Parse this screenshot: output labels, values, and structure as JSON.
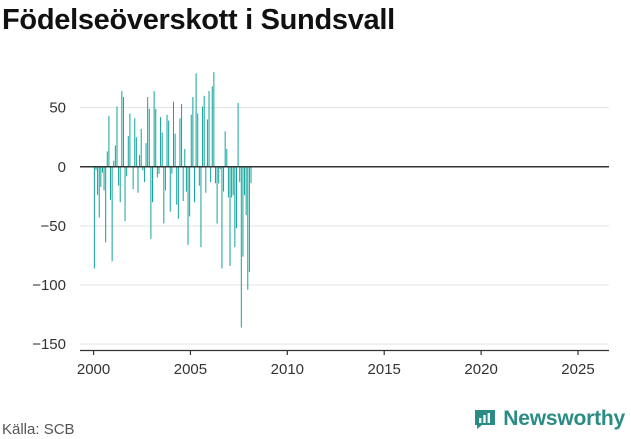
{
  "title": "Födelseöverskott i Sundsvall",
  "source": "Källa: SCB",
  "brand": {
    "name": "Newsworthy",
    "icon": "newsworthy-logo-icon"
  },
  "colors": {
    "bar": "#12a39a",
    "grid": "#e3e3e3",
    "zero": "#333333",
    "brand": "#2a8c84"
  },
  "chart_data": {
    "type": "bar",
    "title": "Födelseöverskott i Sundsvall",
    "xlabel": "",
    "ylabel": "",
    "xlim": [
      1999.3,
      2026.6
    ],
    "ylim": [
      -155,
      92
    ],
    "y_ticks": [
      -150,
      -100,
      -50,
      0,
      50
    ],
    "y_tick_labels": [
      "−150",
      "−100",
      "−50",
      "0",
      "50"
    ],
    "x_ticks": [
      2000,
      2005,
      2010,
      2015,
      2020,
      2025
    ],
    "x_tick_labels": [
      "2000",
      "2005",
      "2010",
      "2015",
      "2020",
      "2025"
    ],
    "grid": true,
    "frequency": "monthly",
    "start": "2000-01",
    "values": [
      -86,
      -3,
      -24,
      -43,
      -17,
      -5,
      -20,
      -64,
      13,
      43,
      -28,
      -80,
      5,
      18,
      51,
      -16,
      -30,
      64,
      59,
      -46,
      -8,
      26,
      45,
      0,
      -19,
      41,
      25,
      -22,
      10,
      32,
      -3,
      -13,
      20,
      59,
      49,
      -61,
      -30,
      64,
      49,
      -9,
      -6,
      42,
      29,
      -48,
      -20,
      44,
      39,
      -38,
      -6,
      55,
      28,
      -32,
      -44,
      41,
      53,
      -29,
      15,
      -21,
      -66,
      -42,
      44,
      59,
      -30,
      79,
      45,
      -16,
      -68,
      51,
      60,
      -22,
      40,
      64,
      -13,
      68,
      80,
      -14,
      -48,
      -14,
      -2,
      -86,
      -21,
      30,
      15,
      -26,
      -84,
      -26,
      -24,
      -68,
      -52,
      54,
      -13,
      -136,
      -76,
      -24,
      -41,
      -104,
      -89,
      -14
    ]
  }
}
